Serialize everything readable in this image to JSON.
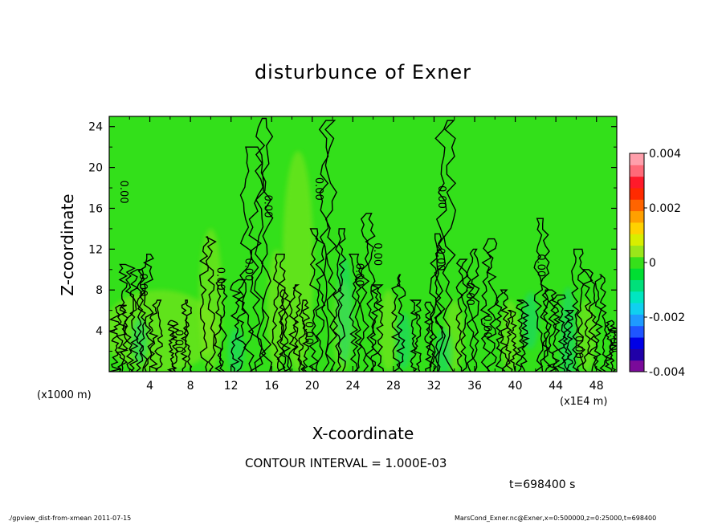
{
  "chart_data": {
    "type": "heatmap",
    "title": "disturbunce of Exner",
    "xlabel": "X-coordinate",
    "ylabel": "Z-coordinate",
    "x_unit_left": "(x1000 m)",
    "x_unit_right": "(x1E4 m)",
    "xlim": [
      0,
      50
    ],
    "ylim": [
      0,
      25
    ],
    "x_ticks": [
      4,
      8,
      12,
      16,
      20,
      24,
      28,
      32,
      36,
      40,
      44,
      48
    ],
    "y_ticks": [
      4,
      8,
      12,
      16,
      20,
      24
    ],
    "colorbar": {
      "range": [
        -0.004,
        0.004
      ],
      "tick_labels": [
        "0.004",
        "0.002",
        "0",
        "-0.002",
        "-0.004"
      ],
      "tick_values": [
        0.004,
        0.002,
        0,
        -0.002,
        -0.004
      ],
      "colors": [
        "#7a0a9a",
        "#2000a8",
        "#0000e6",
        "#1f55ff",
        "#1f9aff",
        "#10d0f0",
        "#00e6c0",
        "#00e07a",
        "#00de32",
        "#36e01a",
        "#9ae61a",
        "#d8ee00",
        "#ffd200",
        "#ffa000",
        "#ff6400",
        "#ff2a00",
        "#ff1a2a",
        "#ff6a78",
        "#ff9fab"
      ]
    },
    "background_color": "#33e01a",
    "contour_labels": [
      {
        "x": 1.4,
        "y": 17.6,
        "text": "0.00"
      },
      {
        "x": 3.3,
        "y": 8.5,
        "text": "0.00"
      },
      {
        "x": 6.8,
        "y": 3.0,
        "text": "0.00"
      },
      {
        "x": 10.9,
        "y": 9.1,
        "text": "0.00"
      },
      {
        "x": 13.7,
        "y": 10.0,
        "text": "0.00"
      },
      {
        "x": 15.6,
        "y": 16.2,
        "text": "0.00"
      },
      {
        "x": 19.6,
        "y": 3.8,
        "text": "0.00"
      },
      {
        "x": 20.6,
        "y": 17.9,
        "text": "0.00"
      },
      {
        "x": 24.6,
        "y": 9.5,
        "text": "0.00"
      },
      {
        "x": 26.4,
        "y": 11.5,
        "text": "0.00"
      },
      {
        "x": 32.7,
        "y": 17.1,
        "text": "0.00"
      },
      {
        "x": 32.6,
        "y": 11.0,
        "text": "0.00"
      },
      {
        "x": 35.5,
        "y": 7.6,
        "text": "0.00"
      },
      {
        "x": 37.2,
        "y": 4.4,
        "text": "0.00"
      },
      {
        "x": 42.5,
        "y": 10.4,
        "text": "0.00"
      },
      {
        "x": 46.2,
        "y": 2.4,
        "text": "0.00"
      },
      {
        "x": 49.6,
        "y": 3.2,
        "text": "0.00"
      }
    ],
    "contour_interval_text": "CONTOUR INTERVAL = 1.000E-03",
    "time_text": "t=698400 s"
  },
  "footer": {
    "left": "./gpview_dist-from-xmean  2011-07-15",
    "right": "MarsCond_Exner.nc@Exner,x=0:500000,z=0:25000,t=698400"
  }
}
